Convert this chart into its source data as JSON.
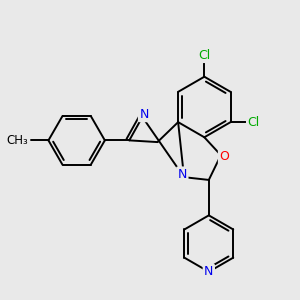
{
  "background_color": "#e9e9e9",
  "bond_color": "#000000",
  "bond_width": 1.4,
  "atom_colors": {
    "N": "#0000ee",
    "O": "#ff0000",
    "Cl": "#00aa00",
    "C": "#000000"
  },
  "figsize": [
    3.0,
    3.0
  ],
  "dpi": 100
}
